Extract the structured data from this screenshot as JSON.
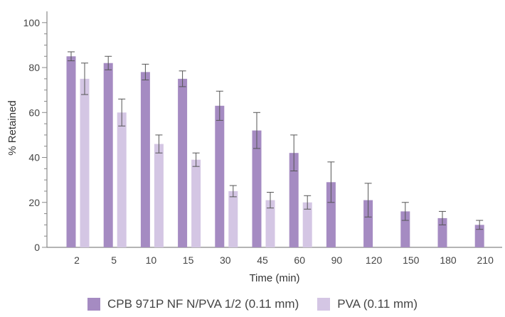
{
  "chart_data": {
    "type": "bar",
    "xlabel": "Time (min)",
    "ylabel": "% Retained",
    "ylim": [
      0,
      105
    ],
    "yticks": [
      0,
      20,
      40,
      60,
      80,
      100
    ],
    "categories": [
      "2",
      "5",
      "10",
      "15",
      "30",
      "45",
      "60",
      "90",
      "120",
      "150",
      "180",
      "210"
    ],
    "series": [
      {
        "name": "CPB 971P NF N/PVA 1/2 (0.11 mm)",
        "color": "#a58bc2",
        "values": [
          85,
          82,
          78,
          75,
          63,
          52,
          42,
          29,
          21,
          16,
          13,
          10
        ],
        "errors": [
          2,
          3,
          3.5,
          3.5,
          6.5,
          8,
          8,
          9,
          7.5,
          4,
          3,
          2
        ]
      },
      {
        "name": "PVA (0.11 mm)",
        "color": "#d4c6e4",
        "values": [
          75,
          60,
          46,
          39,
          25,
          21,
          20,
          null,
          null,
          null,
          null,
          null
        ],
        "errors": [
          7,
          6,
          4,
          3,
          2.5,
          3.5,
          3,
          null,
          null,
          null,
          null,
          null
        ]
      }
    ]
  }
}
